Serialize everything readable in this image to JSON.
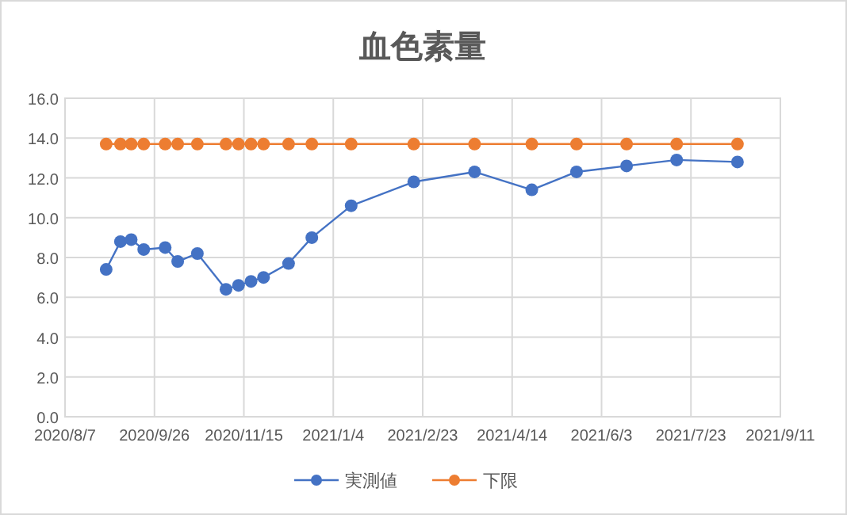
{
  "chart_data": {
    "type": "line",
    "title": "血色素量",
    "x": [
      "2020-08-30",
      "2020-09-07",
      "2020-09-13",
      "2020-09-20",
      "2020-10-02",
      "2020-10-09",
      "2020-10-20",
      "2020-11-05",
      "2020-11-12",
      "2020-11-19",
      "2020-11-26",
      "2020-12-10",
      "2020-12-23",
      "2021-01-14",
      "2021-02-18",
      "2021-03-24",
      "2021-04-25",
      "2021-05-20",
      "2021-06-17",
      "2021-07-15",
      "2021-08-18"
    ],
    "series": [
      {
        "name": "実測値",
        "color": "#4472c4",
        "values": [
          7.4,
          8.8,
          8.9,
          8.4,
          8.5,
          7.8,
          8.2,
          6.4,
          6.6,
          6.8,
          7.0,
          7.7,
          9.0,
          10.6,
          11.8,
          12.3,
          11.4,
          12.3,
          12.6,
          12.9,
          12.8
        ]
      },
      {
        "name": "下限",
        "color": "#ed7d31",
        "values": [
          13.7,
          13.7,
          13.7,
          13.7,
          13.7,
          13.7,
          13.7,
          13.7,
          13.7,
          13.7,
          13.7,
          13.7,
          13.7,
          13.7,
          13.7,
          13.7,
          13.7,
          13.7,
          13.7,
          13.7,
          13.7
        ]
      }
    ],
    "xlim": [
      "2020-08-07",
      "2021-09-11"
    ],
    "xticks": [
      {
        "value": "2020-08-07",
        "label": "2020/8/7"
      },
      {
        "value": "2020-09-26",
        "label": "2020/9/26"
      },
      {
        "value": "2020-11-15",
        "label": "2020/11/15"
      },
      {
        "value": "2021-01-04",
        "label": "2021/1/4"
      },
      {
        "value": "2021-02-23",
        "label": "2021/2/23"
      },
      {
        "value": "2021-04-14",
        "label": "2021/4/14"
      },
      {
        "value": "2021-06-03",
        "label": "2021/6/3"
      },
      {
        "value": "2021-07-23",
        "label": "2021/7/23"
      },
      {
        "value": "2021-09-11",
        "label": "2021/9/11"
      }
    ],
    "ylim": [
      0,
      16
    ],
    "yticks": [
      {
        "value": 0,
        "label": "0.0"
      },
      {
        "value": 2,
        "label": "2.0"
      },
      {
        "value": 4,
        "label": "4.0"
      },
      {
        "value": 6,
        "label": "6.0"
      },
      {
        "value": 8,
        "label": "8.0"
      },
      {
        "value": 10,
        "label": "10.0"
      },
      {
        "value": 12,
        "label": "12.0"
      },
      {
        "value": 14,
        "label": "14.0"
      },
      {
        "value": 16,
        "label": "16.0"
      }
    ],
    "grid": true,
    "legend": "bottom",
    "marker": "circle",
    "line_style": "solid"
  }
}
